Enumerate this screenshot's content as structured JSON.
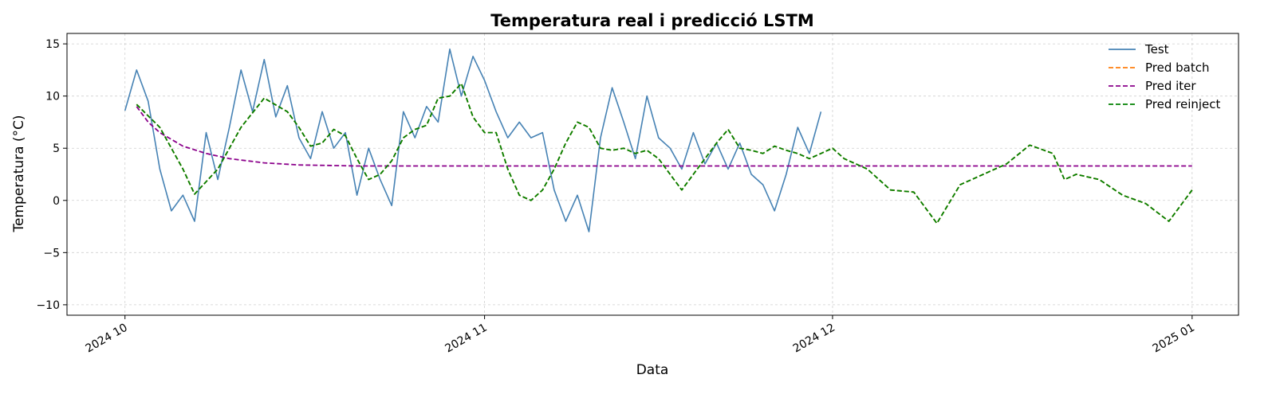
{
  "chart_data": {
    "type": "line",
    "title": "Temperatura real i predicció LSTM",
    "xlabel": "Data",
    "ylabel": "Temperatura (°C)",
    "x_ticks": [
      {
        "date": "2024-10-01",
        "label": "2024 10"
      },
      {
        "date": "2024-11-01",
        "label": "2024 11"
      },
      {
        "date": "2024-12-01",
        "label": "2024 12"
      },
      {
        "date": "2025-01-01",
        "label": "2025 01"
      }
    ],
    "y_ticks": [
      -10,
      -5,
      0,
      5,
      10,
      15
    ],
    "xlim": [
      "2024-09-26",
      "2025-01-05"
    ],
    "ylim": [
      -11,
      16
    ],
    "grid": true,
    "legend_position": "top-right",
    "series": [
      {
        "name": "Test",
        "color": "#4682b4",
        "style": "solid",
        "points": [
          [
            "2024-10-01",
            8.6
          ],
          [
            "2024-10-02",
            12.5
          ],
          [
            "2024-10-03",
            9.5
          ],
          [
            "2024-10-04",
            3.0
          ],
          [
            "2024-10-05",
            -1.0
          ],
          [
            "2024-10-06",
            0.5
          ],
          [
            "2024-10-07",
            -2.0
          ],
          [
            "2024-10-08",
            6.5
          ],
          [
            "2024-10-09",
            2.0
          ],
          [
            "2024-10-10",
            7.0
          ],
          [
            "2024-10-11",
            12.5
          ],
          [
            "2024-10-12",
            8.5
          ],
          [
            "2024-10-13",
            13.5
          ],
          [
            "2024-10-14",
            8.0
          ],
          [
            "2024-10-15",
            11.0
          ],
          [
            "2024-10-16",
            6.0
          ],
          [
            "2024-10-17",
            4.0
          ],
          [
            "2024-10-18",
            8.5
          ],
          [
            "2024-10-19",
            5.0
          ],
          [
            "2024-10-20",
            6.5
          ],
          [
            "2024-10-21",
            0.5
          ],
          [
            "2024-10-22",
            5.0
          ],
          [
            "2024-10-23",
            2.0
          ],
          [
            "2024-10-24",
            -0.5
          ],
          [
            "2024-10-25",
            8.5
          ],
          [
            "2024-10-26",
            6.0
          ],
          [
            "2024-10-27",
            9.0
          ],
          [
            "2024-10-28",
            7.5
          ],
          [
            "2024-10-29",
            14.5
          ],
          [
            "2024-10-30",
            10.0
          ],
          [
            "2024-10-31",
            13.8
          ],
          [
            "2024-11-01",
            11.5
          ],
          [
            "2024-11-02",
            8.5
          ],
          [
            "2024-11-03",
            6.0
          ],
          [
            "2024-11-04",
            7.5
          ],
          [
            "2024-11-05",
            6.0
          ],
          [
            "2024-11-06",
            6.5
          ],
          [
            "2024-11-07",
            1.0
          ],
          [
            "2024-11-08",
            -2.0
          ],
          [
            "2024-11-09",
            0.5
          ],
          [
            "2024-11-10",
            -3.0
          ],
          [
            "2024-11-11",
            6.0
          ],
          [
            "2024-11-12",
            10.8
          ],
          [
            "2024-11-13",
            7.5
          ],
          [
            "2024-11-14",
            4.0
          ],
          [
            "2024-11-15",
            10.0
          ],
          [
            "2024-11-16",
            6.0
          ],
          [
            "2024-11-17",
            5.0
          ],
          [
            "2024-11-18",
            3.0
          ],
          [
            "2024-11-19",
            6.5
          ],
          [
            "2024-11-20",
            3.5
          ],
          [
            "2024-11-21",
            5.5
          ],
          [
            "2024-11-22",
            3.0
          ],
          [
            "2024-11-23",
            5.5
          ],
          [
            "2024-11-24",
            2.5
          ],
          [
            "2024-11-25",
            1.5
          ],
          [
            "2024-11-26",
            -1.0
          ],
          [
            "2024-11-27",
            2.5
          ],
          [
            "2024-11-28",
            7.0
          ],
          [
            "2024-11-29",
            4.5
          ],
          [
            "2024-11-30",
            8.5
          ]
        ]
      },
      {
        "name": "Pred batch",
        "color": "#ff7f0e",
        "style": "dashed",
        "points": [
          [
            "2024-10-02",
            9.2
          ],
          [
            "2024-10-04",
            7.0
          ],
          [
            "2024-10-06",
            3.0
          ],
          [
            "2024-10-07",
            0.6
          ],
          [
            "2024-10-09",
            3.0
          ],
          [
            "2024-10-11",
            7.0
          ],
          [
            "2024-10-13",
            9.8
          ],
          [
            "2024-10-15",
            8.5
          ],
          [
            "2024-10-16",
            7.0
          ],
          [
            "2024-10-17",
            5.2
          ],
          [
            "2024-10-18",
            5.5
          ],
          [
            "2024-10-19",
            6.8
          ],
          [
            "2024-10-20",
            6.2
          ],
          [
            "2024-10-21",
            4.0
          ],
          [
            "2024-10-22",
            2.0
          ],
          [
            "2024-10-23",
            2.5
          ],
          [
            "2024-10-24",
            3.8
          ],
          [
            "2024-10-25",
            6.0
          ],
          [
            "2024-10-26",
            6.8
          ],
          [
            "2024-10-27",
            7.2
          ],
          [
            "2024-10-28",
            9.8
          ],
          [
            "2024-10-29",
            10.0
          ],
          [
            "2024-10-30",
            11.2
          ],
          [
            "2024-10-31",
            8.0
          ],
          [
            "2024-11-01",
            6.5
          ],
          [
            "2024-11-02",
            6.5
          ],
          [
            "2024-11-03",
            3.0
          ],
          [
            "2024-11-04",
            0.5
          ],
          [
            "2024-11-05",
            0.0
          ],
          [
            "2024-11-06",
            1.0
          ],
          [
            "2024-11-07",
            3.0
          ],
          [
            "2024-11-08",
            5.5
          ],
          [
            "2024-11-09",
            7.5
          ],
          [
            "2024-11-10",
            7.0
          ],
          [
            "2024-11-11",
            5.0
          ],
          [
            "2024-11-12",
            4.8
          ],
          [
            "2024-11-13",
            5.0
          ],
          [
            "2024-11-14",
            4.5
          ],
          [
            "2024-11-15",
            4.8
          ],
          [
            "2024-11-16",
            4.0
          ],
          [
            "2024-11-17",
            2.5
          ],
          [
            "2024-11-18",
            1.0
          ],
          [
            "2024-11-19",
            2.5
          ],
          [
            "2024-11-20",
            4.0
          ],
          [
            "2024-11-21",
            5.5
          ],
          [
            "2024-11-22",
            6.8
          ],
          [
            "2024-11-23",
            5.0
          ],
          [
            "2024-11-24",
            4.8
          ],
          [
            "2024-11-25",
            4.5
          ],
          [
            "2024-11-26",
            5.2
          ],
          [
            "2024-11-27",
            4.8
          ],
          [
            "2024-11-28",
            4.5
          ],
          [
            "2024-11-29",
            4.0
          ],
          [
            "2024-11-30",
            4.5
          ],
          [
            "2024-12-01",
            5.0
          ],
          [
            "2024-12-02",
            4.0
          ],
          [
            "2024-12-04",
            3.0
          ],
          [
            "2024-12-06",
            1.0
          ],
          [
            "2024-12-08",
            0.8
          ],
          [
            "2024-12-10",
            -2.2
          ],
          [
            "2024-12-12",
            1.5
          ],
          [
            "2024-12-14",
            2.5
          ],
          [
            "2024-12-16",
            3.5
          ],
          [
            "2024-12-18",
            5.3
          ],
          [
            "2024-12-20",
            4.5
          ],
          [
            "2024-12-21",
            2.0
          ],
          [
            "2024-12-22",
            2.5
          ],
          [
            "2024-12-24",
            2.0
          ],
          [
            "2024-12-26",
            0.5
          ],
          [
            "2024-12-28",
            -0.3
          ],
          [
            "2024-12-30",
            -2.0
          ],
          [
            "2025-01-01",
            1.0
          ]
        ]
      },
      {
        "name": "Pred iter",
        "color": "#8b008b",
        "style": "dashed",
        "points": [
          [
            "2024-10-02",
            9.0
          ],
          [
            "2024-10-03",
            7.5
          ],
          [
            "2024-10-04",
            6.5
          ],
          [
            "2024-10-06",
            5.2
          ],
          [
            "2024-10-08",
            4.5
          ],
          [
            "2024-10-10",
            4.0
          ],
          [
            "2024-10-13",
            3.6
          ],
          [
            "2024-10-16",
            3.4
          ],
          [
            "2024-10-21",
            3.3
          ],
          [
            "2025-01-01",
            3.3
          ]
        ]
      },
      {
        "name": "Pred reinject",
        "color": "#008000",
        "style": "dashed",
        "points": [
          [
            "2024-10-02",
            9.2
          ],
          [
            "2024-10-04",
            7.0
          ],
          [
            "2024-10-06",
            3.0
          ],
          [
            "2024-10-07",
            0.6
          ],
          [
            "2024-10-09",
            3.0
          ],
          [
            "2024-10-11",
            7.0
          ],
          [
            "2024-10-13",
            9.8
          ],
          [
            "2024-10-15",
            8.5
          ],
          [
            "2024-10-16",
            7.0
          ],
          [
            "2024-10-17",
            5.2
          ],
          [
            "2024-10-18",
            5.5
          ],
          [
            "2024-10-19",
            6.8
          ],
          [
            "2024-10-20",
            6.2
          ],
          [
            "2024-10-21",
            4.0
          ],
          [
            "2024-10-22",
            2.0
          ],
          [
            "2024-10-23",
            2.5
          ],
          [
            "2024-10-24",
            3.8
          ],
          [
            "2024-10-25",
            6.0
          ],
          [
            "2024-10-26",
            6.8
          ],
          [
            "2024-10-27",
            7.2
          ],
          [
            "2024-10-28",
            9.8
          ],
          [
            "2024-10-29",
            10.0
          ],
          [
            "2024-10-30",
            11.2
          ],
          [
            "2024-10-31",
            8.0
          ],
          [
            "2024-11-01",
            6.5
          ],
          [
            "2024-11-02",
            6.5
          ],
          [
            "2024-11-03",
            3.0
          ],
          [
            "2024-11-04",
            0.5
          ],
          [
            "2024-11-05",
            0.0
          ],
          [
            "2024-11-06",
            1.0
          ],
          [
            "2024-11-07",
            3.0
          ],
          [
            "2024-11-08",
            5.5
          ],
          [
            "2024-11-09",
            7.5
          ],
          [
            "2024-11-10",
            7.0
          ],
          [
            "2024-11-11",
            5.0
          ],
          [
            "2024-11-12",
            4.8
          ],
          [
            "2024-11-13",
            5.0
          ],
          [
            "2024-11-14",
            4.5
          ],
          [
            "2024-11-15",
            4.8
          ],
          [
            "2024-11-16",
            4.0
          ],
          [
            "2024-11-17",
            2.5
          ],
          [
            "2024-11-18",
            1.0
          ],
          [
            "2024-11-19",
            2.5
          ],
          [
            "2024-11-20",
            4.0
          ],
          [
            "2024-11-21",
            5.5
          ],
          [
            "2024-11-22",
            6.8
          ],
          [
            "2024-11-23",
            5.0
          ],
          [
            "2024-11-24",
            4.8
          ],
          [
            "2024-11-25",
            4.5
          ],
          [
            "2024-11-26",
            5.2
          ],
          [
            "2024-11-27",
            4.8
          ],
          [
            "2024-11-28",
            4.5
          ],
          [
            "2024-11-29",
            4.0
          ],
          [
            "2024-11-30",
            4.5
          ],
          [
            "2024-12-01",
            5.0
          ],
          [
            "2024-12-02",
            4.0
          ],
          [
            "2024-12-04",
            3.0
          ],
          [
            "2024-12-06",
            1.0
          ],
          [
            "2024-12-08",
            0.8
          ],
          [
            "2024-12-10",
            -2.2
          ],
          [
            "2024-12-12",
            1.5
          ],
          [
            "2024-12-14",
            2.5
          ],
          [
            "2024-12-16",
            3.5
          ],
          [
            "2024-12-18",
            5.3
          ],
          [
            "2024-12-20",
            4.5
          ],
          [
            "2024-12-21",
            2.0
          ],
          [
            "2024-12-22",
            2.5
          ],
          [
            "2024-12-24",
            2.0
          ],
          [
            "2024-12-26",
            0.5
          ],
          [
            "2024-12-28",
            -0.3
          ],
          [
            "2024-12-30",
            -2.0
          ],
          [
            "2025-01-01",
            1.0
          ]
        ]
      }
    ]
  }
}
